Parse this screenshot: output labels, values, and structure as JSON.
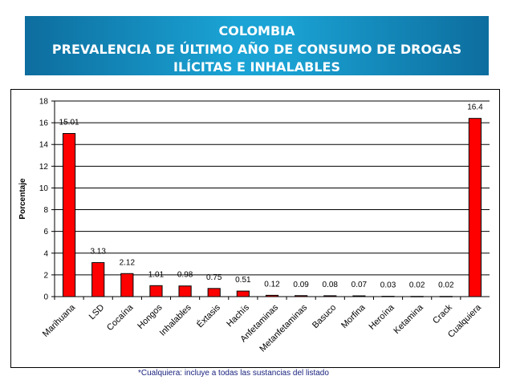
{
  "header": {
    "title": "COLOMBIA",
    "subtitle_line1": "PREVALENCIA DE ÚLTIMO AÑO DE CONSUMO DE DROGAS",
    "subtitle_line2": "ILÍCITAS E INHALABLES"
  },
  "footnote": "*Cualquiera: incluye a todas las sustancias del listado",
  "colors": {
    "bar": "#ff0000",
    "bar_border": "#000000",
    "banner": "#1aa3d4"
  },
  "chart_data": {
    "type": "bar",
    "title": "PREVALENCIA DE ÚLTIMO AÑO DE CONSUMO DE DROGAS ILÍCITAS E INHALABLES",
    "xlabel": "",
    "ylabel": "Porcentaje",
    "ylim": [
      0,
      18
    ],
    "yticks": [
      0,
      2,
      4,
      6,
      8,
      10,
      12,
      14,
      16,
      18
    ],
    "grid": true,
    "categories": [
      "Marihuana",
      "LSD",
      "Cocaína",
      "Hongos",
      "Inhalables",
      "Éxtasis",
      "Hachís",
      "Anfetaminas",
      "Metanfetaminas",
      "Basuco",
      "Morfina",
      "Heroína",
      "Ketamina",
      "Crack",
      "Cualquiera"
    ],
    "values": [
      15.01,
      3.13,
      2.12,
      1.01,
      0.98,
      0.75,
      0.51,
      0.12,
      0.09,
      0.08,
      0.07,
      0.03,
      0.02,
      0.02,
      16.4
    ],
    "labels": [
      "15.01",
      "3.13",
      "2.12",
      "1.01",
      "0.98",
      "0.75",
      "0.51",
      "0.12",
      "0.09",
      "0.08",
      "0.07",
      "0.03",
      "0.02",
      "0.02",
      "16.4"
    ]
  }
}
